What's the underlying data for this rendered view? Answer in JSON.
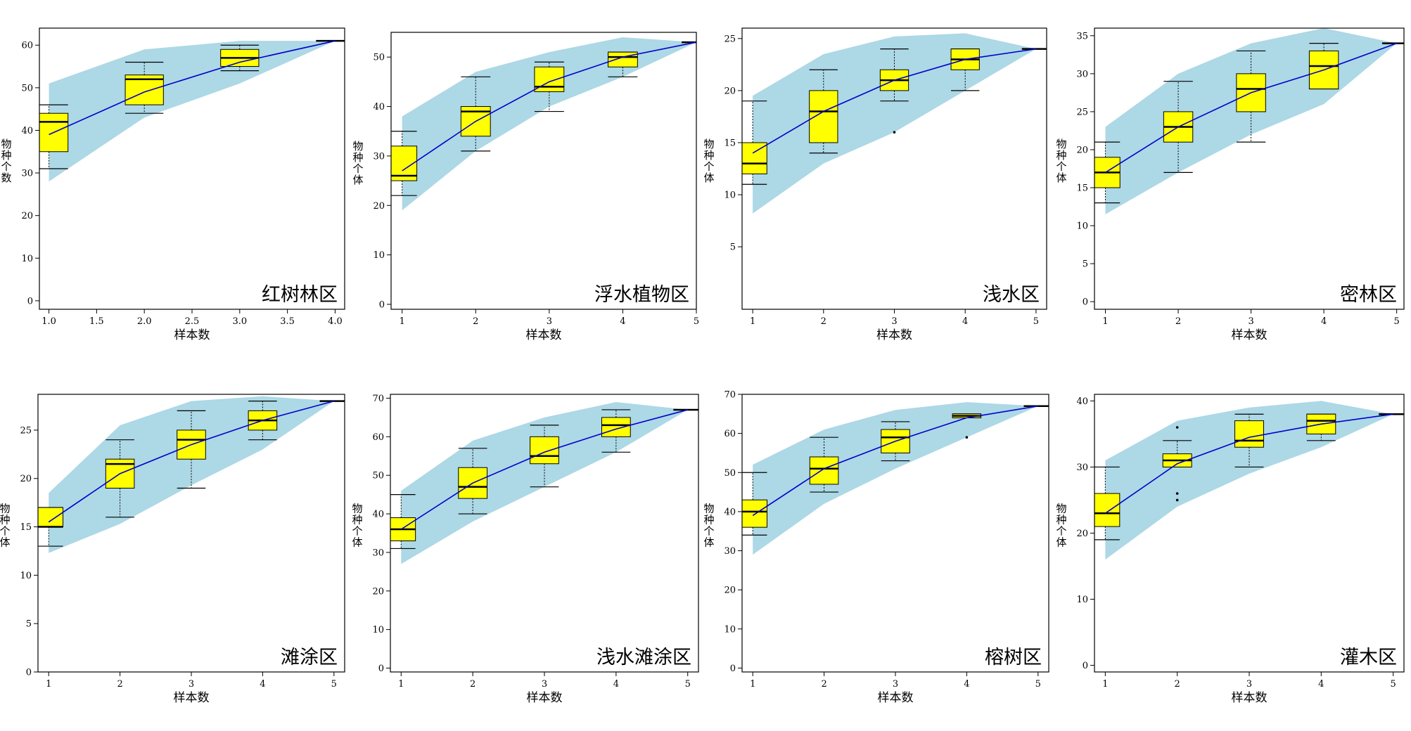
{
  "figure": {
    "colors": {
      "band": "#add8e6",
      "box": "#ffff00",
      "line": "#0000cd",
      "frame": "#000000"
    }
  },
  "chart_data": [
    {
      "type": "box",
      "title": "红树林区",
      "xlabel": "样本数",
      "ylabel": "物种个数",
      "xlim": [
        0.9,
        4.1
      ],
      "ylim": [
        -2,
        64
      ],
      "xticks": [
        "1.0",
        "1.5",
        "2.0",
        "2.5",
        "3.0",
        "3.5",
        "4.0"
      ],
      "yticks": [
        "0",
        "10",
        "20",
        "30",
        "40",
        "50",
        "60"
      ],
      "x": [
        1,
        2,
        3,
        4
      ],
      "mean": [
        39,
        49,
        56,
        61
      ],
      "band": {
        "upper": [
          51,
          59,
          61,
          61
        ],
        "lower": [
          28,
          43,
          51,
          61
        ]
      },
      "boxes": [
        {
          "x": 1,
          "whislo": 31,
          "q1": 35,
          "med": 42,
          "q3": 44,
          "whishi": 46
        },
        {
          "x": 2,
          "whislo": 44,
          "q1": 46,
          "med": 52,
          "q3": 53,
          "whishi": 56
        },
        {
          "x": 3,
          "whislo": 54,
          "q1": 55,
          "med": 57,
          "q3": 59,
          "whishi": 60
        },
        {
          "x": 4,
          "whislo": 61,
          "q1": 61,
          "med": 61,
          "q3": 61,
          "whishi": 61
        }
      ],
      "outliers": []
    },
    {
      "type": "box",
      "title": "浮水植物区",
      "xlabel": "样本数",
      "ylabel": "物种个体",
      "xlim": [
        0.85,
        5.0
      ],
      "ylim": [
        -1,
        55
      ],
      "xticks": [
        "1",
        "2",
        "3",
        "4",
        "5"
      ],
      "yticks": [
        "0",
        "10",
        "20",
        "30",
        "40",
        "50"
      ],
      "x": [
        1,
        2,
        3,
        4,
        5
      ],
      "mean": [
        27,
        37,
        45,
        50,
        53
      ],
      "band": {
        "upper": [
          38,
          47,
          51,
          54,
          53
        ],
        "lower": [
          19,
          31,
          40,
          46,
          53
        ]
      },
      "boxes": [
        {
          "x": 1,
          "whislo": 22,
          "q1": 25,
          "med": 26,
          "q3": 32,
          "whishi": 35
        },
        {
          "x": 2,
          "whislo": 31,
          "q1": 34,
          "med": 39,
          "q3": 40,
          "whishi": 46
        },
        {
          "x": 3,
          "whislo": 39,
          "q1": 43,
          "med": 44,
          "q3": 48,
          "whishi": 49
        },
        {
          "x": 4,
          "whislo": 46,
          "q1": 48,
          "med": 50,
          "q3": 51,
          "whishi": 51
        },
        {
          "x": 5,
          "whislo": 53,
          "q1": 53,
          "med": 53,
          "q3": 53,
          "whishi": 53
        }
      ],
      "outliers": []
    },
    {
      "type": "box",
      "title": "浅水区",
      "xlabel": "样本数",
      "ylabel": "物种个体",
      "xlim": [
        0.85,
        5.15
      ],
      "ylim": [
        -1,
        26
      ],
      "xticks": [
        "1",
        "2",
        "3",
        "4",
        "5"
      ],
      "yticks": [
        "5",
        "10",
        "15",
        "20",
        "25"
      ],
      "x": [
        1,
        2,
        3,
        4,
        5
      ],
      "mean": [
        14,
        18,
        21,
        23,
        24
      ],
      "band": {
        "upper": [
          19.5,
          23.5,
          25.2,
          25.5,
          24
        ],
        "lower": [
          8.2,
          13,
          16,
          20,
          24
        ]
      },
      "boxes": [
        {
          "x": 1,
          "whislo": 11,
          "q1": 12,
          "med": 13,
          "q3": 15,
          "whishi": 19
        },
        {
          "x": 2,
          "whislo": 14,
          "q1": 15,
          "med": 18,
          "q3": 20,
          "whishi": 22
        },
        {
          "x": 3,
          "whislo": 19,
          "q1": 20,
          "med": 21,
          "q3": 22,
          "whishi": 24
        },
        {
          "x": 4,
          "whislo": 20,
          "q1": 22,
          "med": 23,
          "q3": 24,
          "whishi": 24
        },
        {
          "x": 5,
          "whislo": 24,
          "q1": 24,
          "med": 24,
          "q3": 24,
          "whishi": 24
        }
      ],
      "outliers": [
        {
          "x": 3,
          "y": 16
        }
      ]
    },
    {
      "type": "box",
      "title": "密林区",
      "xlabel": "样本数",
      "ylabel": "物种个体",
      "xlim": [
        0.85,
        5.1
      ],
      "ylim": [
        -1,
        36
      ],
      "xticks": [
        "1",
        "2",
        "3",
        "4",
        "5"
      ],
      "yticks": [
        "0",
        "5",
        "10",
        "15",
        "20",
        "25",
        "30",
        "35"
      ],
      "x": [
        1,
        2,
        3,
        4,
        5
      ],
      "mean": [
        17,
        23,
        27.5,
        30.5,
        34
      ],
      "band": {
        "upper": [
          23,
          30,
          34,
          36,
          34
        ],
        "lower": [
          11.5,
          17,
          22,
          26,
          34
        ]
      },
      "boxes": [
        {
          "x": 1,
          "whislo": 13,
          "q1": 15,
          "med": 17,
          "q3": 19,
          "whishi": 21
        },
        {
          "x": 2,
          "whislo": 17,
          "q1": 21,
          "med": 23,
          "q3": 25,
          "whishi": 29
        },
        {
          "x": 3,
          "whislo": 21,
          "q1": 25,
          "med": 28,
          "q3": 30,
          "whishi": 33
        },
        {
          "x": 4,
          "whislo": 28,
          "q1": 28,
          "med": 31,
          "q3": 33,
          "whishi": 34
        },
        {
          "x": 5,
          "whislo": 34,
          "q1": 34,
          "med": 34,
          "q3": 34,
          "whishi": 34
        }
      ],
      "outliers": []
    },
    {
      "type": "box",
      "title": "滩涂区",
      "xlabel": "样本数",
      "ylabel": "物种个体",
      "xlim": [
        0.85,
        5.15
      ],
      "ylim": [
        0,
        28.7
      ],
      "xticks": [
        "1",
        "2",
        "3",
        "4",
        "5"
      ],
      "yticks": [
        "0",
        "5",
        "10",
        "15",
        "20",
        "25"
      ],
      "x": [
        1,
        2,
        3,
        4,
        5
      ],
      "mean": [
        15.5,
        20.5,
        23.5,
        26,
        28
      ],
      "band": {
        "upper": [
          18.5,
          25.5,
          28,
          28.5,
          28
        ],
        "lower": [
          12.3,
          15.3,
          19.3,
          23,
          28
        ]
      },
      "boxes": [
        {
          "x": 1,
          "whislo": 13,
          "q1": 15,
          "med": 15,
          "q3": 17,
          "whishi": 17
        },
        {
          "x": 2,
          "whislo": 16,
          "q1": 19,
          "med": 21.5,
          "q3": 22,
          "whishi": 24
        },
        {
          "x": 3,
          "whislo": 19,
          "q1": 22,
          "med": 24,
          "q3": 25,
          "whishi": 27
        },
        {
          "x": 4,
          "whislo": 24,
          "q1": 25,
          "med": 26,
          "q3": 27,
          "whishi": 28
        },
        {
          "x": 5,
          "whislo": 28,
          "q1": 28,
          "med": 28,
          "q3": 28,
          "whishi": 28
        }
      ],
      "outliers": []
    },
    {
      "type": "box",
      "title": "浅水滩涂区",
      "xlabel": "样本数",
      "ylabel": "物种个体",
      "xlim": [
        0.85,
        5.15
      ],
      "ylim": [
        -1,
        71
      ],
      "xticks": [
        "1",
        "2",
        "3",
        "4",
        "5"
      ],
      "yticks": [
        "0",
        "10",
        "20",
        "30",
        "40",
        "50",
        "60",
        "70"
      ],
      "x": [
        1,
        2,
        3,
        4,
        5
      ],
      "mean": [
        36,
        48,
        56,
        62,
        67
      ],
      "band": {
        "upper": [
          46,
          59,
          65,
          69,
          67
        ],
        "lower": [
          27,
          38,
          47,
          56,
          67
        ]
      },
      "boxes": [
        {
          "x": 1,
          "whislo": 31,
          "q1": 33,
          "med": 36,
          "q3": 39,
          "whishi": 45
        },
        {
          "x": 2,
          "whislo": 40,
          "q1": 44,
          "med": 47,
          "q3": 52,
          "whishi": 57
        },
        {
          "x": 3,
          "whislo": 47,
          "q1": 53,
          "med": 55,
          "q3": 60,
          "whishi": 63
        },
        {
          "x": 4,
          "whislo": 56,
          "q1": 60,
          "med": 63,
          "q3": 65,
          "whishi": 67
        },
        {
          "x": 5,
          "whislo": 67,
          "q1": 67,
          "med": 67,
          "q3": 67,
          "whishi": 67
        }
      ],
      "outliers": []
    },
    {
      "type": "box",
      "title": "榕树区",
      "xlabel": "样本数",
      "ylabel": "物种个体",
      "xlim": [
        0.85,
        5.15
      ],
      "ylim": [
        -1,
        70
      ],
      "xticks": [
        "1",
        "2",
        "3",
        "4",
        "5"
      ],
      "yticks": [
        "0",
        "10",
        "20",
        "30",
        "40",
        "50",
        "60",
        "70"
      ],
      "x": [
        1,
        2,
        3,
        4,
        5
      ],
      "mean": [
        39,
        51,
        58,
        64,
        67
      ],
      "band": {
        "upper": [
          52,
          61,
          66,
          68,
          67
        ],
        "lower": [
          29,
          42,
          51,
          59,
          67
        ]
      },
      "boxes": [
        {
          "x": 1,
          "whislo": 34,
          "q1": 36,
          "med": 40,
          "q3": 43,
          "whishi": 50
        },
        {
          "x": 2,
          "whislo": 45,
          "q1": 47,
          "med": 51,
          "q3": 54,
          "whishi": 59
        },
        {
          "x": 3,
          "whislo": 53,
          "q1": 55,
          "med": 59,
          "q3": 61,
          "whishi": 63
        },
        {
          "x": 4,
          "whislo": 64,
          "q1": 64,
          "med": 64.5,
          "q3": 65,
          "whishi": 65
        },
        {
          "x": 5,
          "whislo": 67,
          "q1": 67,
          "med": 67,
          "q3": 67,
          "whishi": 67
        }
      ],
      "outliers": [
        {
          "x": 4,
          "y": 59
        }
      ]
    },
    {
      "type": "box",
      "title": "灌木区",
      "xlabel": "样本数",
      "ylabel": "物种个体",
      "xlim": [
        0.85,
        5.15
      ],
      "ylim": [
        -1,
        41
      ],
      "xticks": [
        "1",
        "2",
        "3",
        "4",
        "5"
      ],
      "yticks": [
        "0",
        "10",
        "20",
        "30",
        "40"
      ],
      "x": [
        1,
        2,
        3,
        4,
        5
      ],
      "mean": [
        23,
        30.5,
        34.5,
        36.5,
        38
      ],
      "band": {
        "upper": [
          31,
          37,
          39,
          40,
          38
        ],
        "lower": [
          16,
          24,
          29,
          33,
          38
        ]
      },
      "boxes": [
        {
          "x": 1,
          "whislo": 19,
          "q1": 21,
          "med": 23,
          "q3": 26,
          "whishi": 30
        },
        {
          "x": 2,
          "whislo": 30,
          "q1": 30,
          "med": 31,
          "q3": 32,
          "whishi": 34
        },
        {
          "x": 3,
          "whislo": 30,
          "q1": 33,
          "med": 34,
          "q3": 37,
          "whishi": 38
        },
        {
          "x": 4,
          "whislo": 34,
          "q1": 35,
          "med": 37,
          "q3": 38,
          "whishi": 38
        },
        {
          "x": 5,
          "whislo": 38,
          "q1": 38,
          "med": 38,
          "q3": 38,
          "whishi": 38
        }
      ],
      "outliers": [
        {
          "x": 2,
          "y": 36
        },
        {
          "x": 2,
          "y": 26
        },
        {
          "x": 2,
          "y": 25
        }
      ]
    }
  ]
}
